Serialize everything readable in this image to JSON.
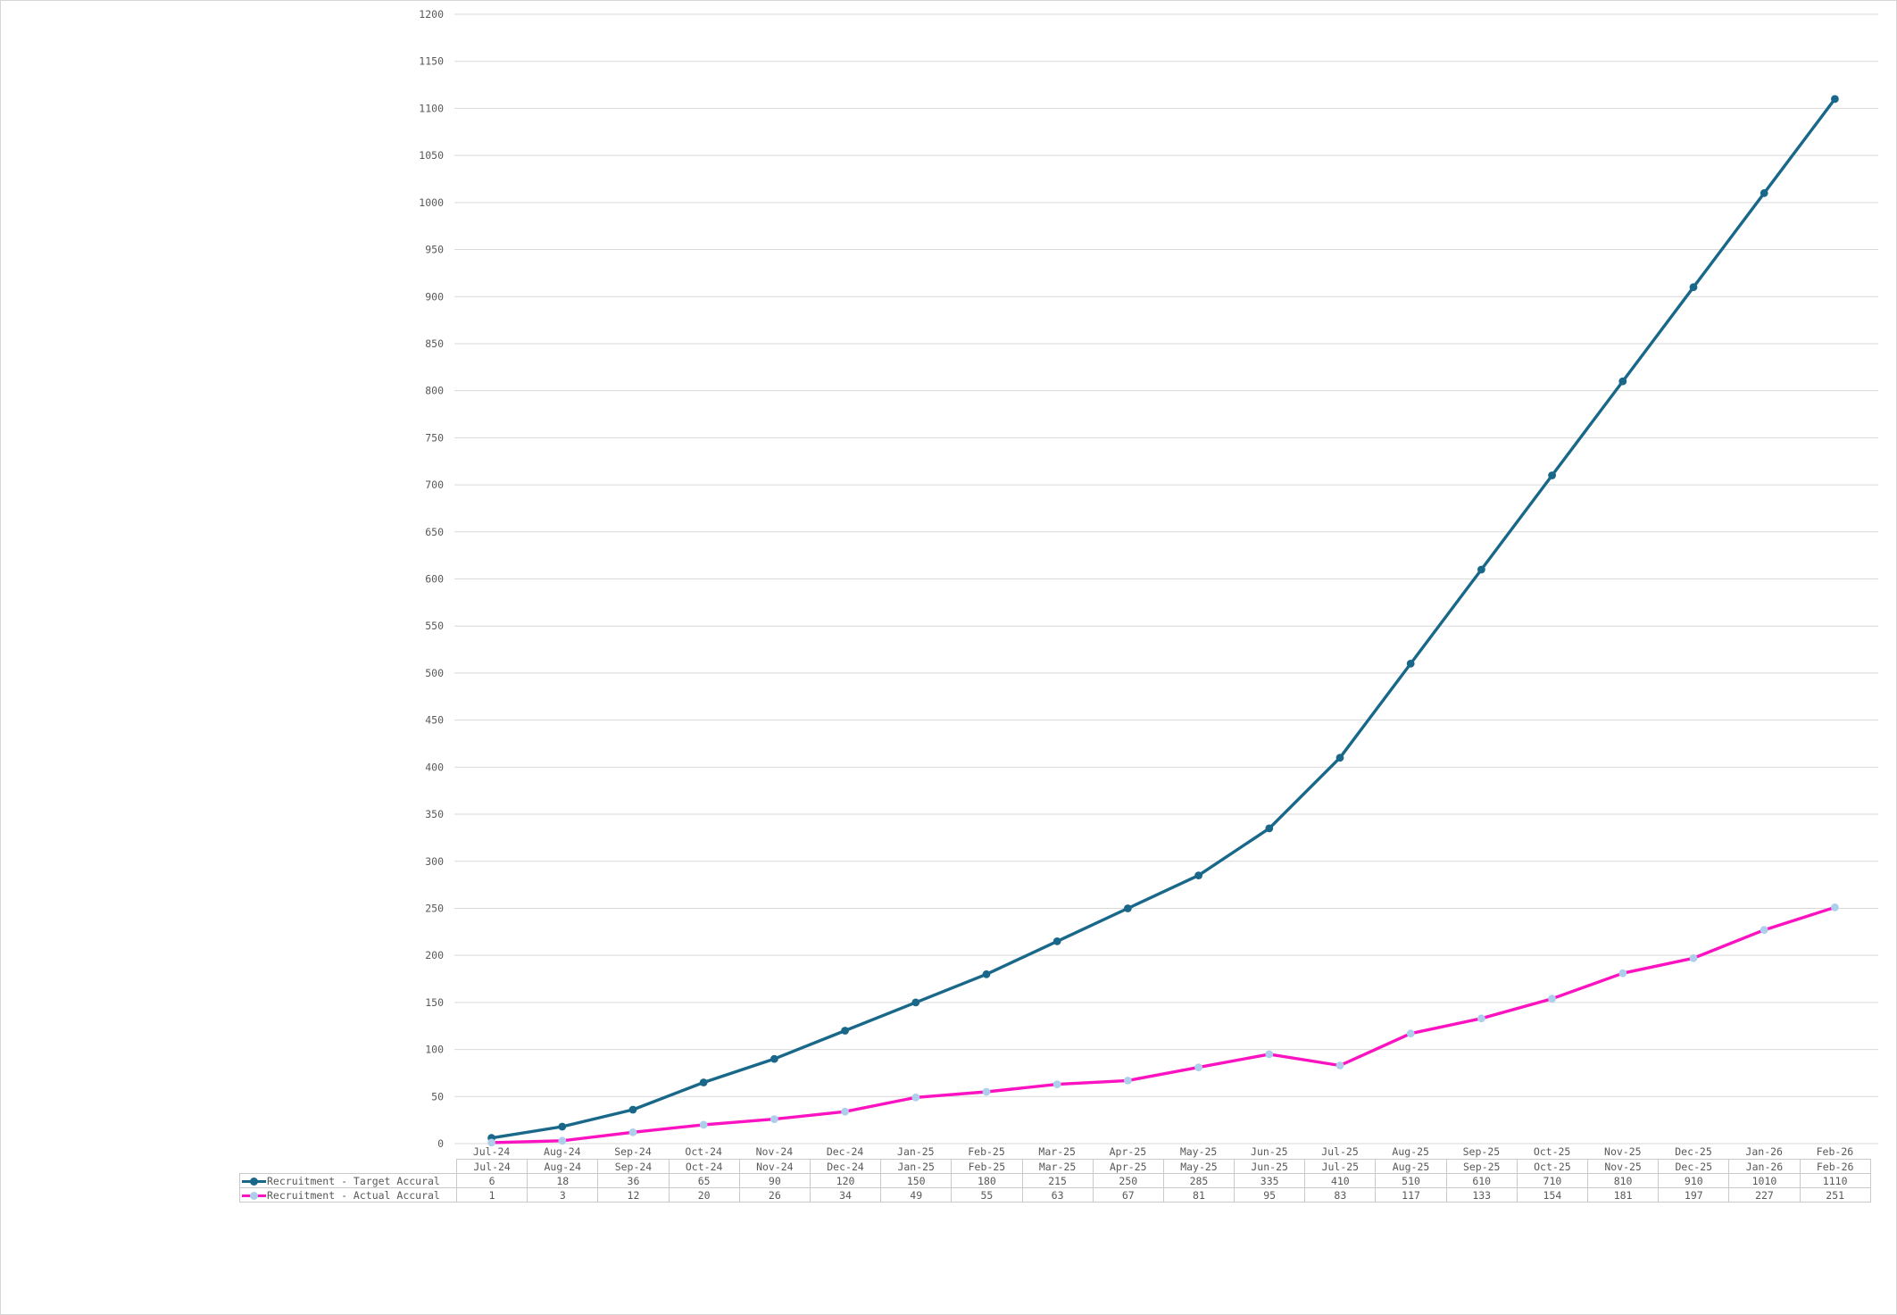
{
  "window": {
    "background": "#ffffff",
    "border_color": "#d6d6d6"
  },
  "chart_data": {
    "type": "line",
    "title": "",
    "xlabel": "",
    "ylabel": "",
    "categories": [
      "Jul-24",
      "Aug-24",
      "Sep-24",
      "Oct-24",
      "Nov-24",
      "Dec-24",
      "Jan-25",
      "Feb-25",
      "Mar-25",
      "Apr-25",
      "May-25",
      "Jun-25",
      "Jul-25",
      "Aug-25",
      "Sep-25",
      "Oct-25",
      "Nov-25",
      "Dec-25",
      "Jan-26",
      "Feb-26"
    ],
    "series": [
      {
        "name": "Recruitment - Target Accural",
        "values": [
          6,
          18,
          36,
          65,
          90,
          120,
          150,
          180,
          215,
          250,
          285,
          335,
          410,
          510,
          610,
          710,
          810,
          910,
          1010,
          1110
        ],
        "line_color": "#19688a",
        "marker_color": "#19688a"
      },
      {
        "name": "Recruitment - Actual Accural",
        "values": [
          1,
          3,
          12,
          20,
          26,
          34,
          49,
          55,
          63,
          67,
          81,
          95,
          83,
          117,
          133,
          154,
          181,
          197,
          227,
          251
        ],
        "line_color": "#fb12c1",
        "marker_color": "#aecfec"
      }
    ],
    "ylim": [
      0,
      1200
    ],
    "ytick_step": 50,
    "grid": true,
    "gridline_color": "#d9d9d9",
    "axis_text_color": "#595959",
    "legend_position": "table-rows-left"
  },
  "table": {
    "border_color": "#c9c9c9",
    "text_color": "#595959"
  }
}
